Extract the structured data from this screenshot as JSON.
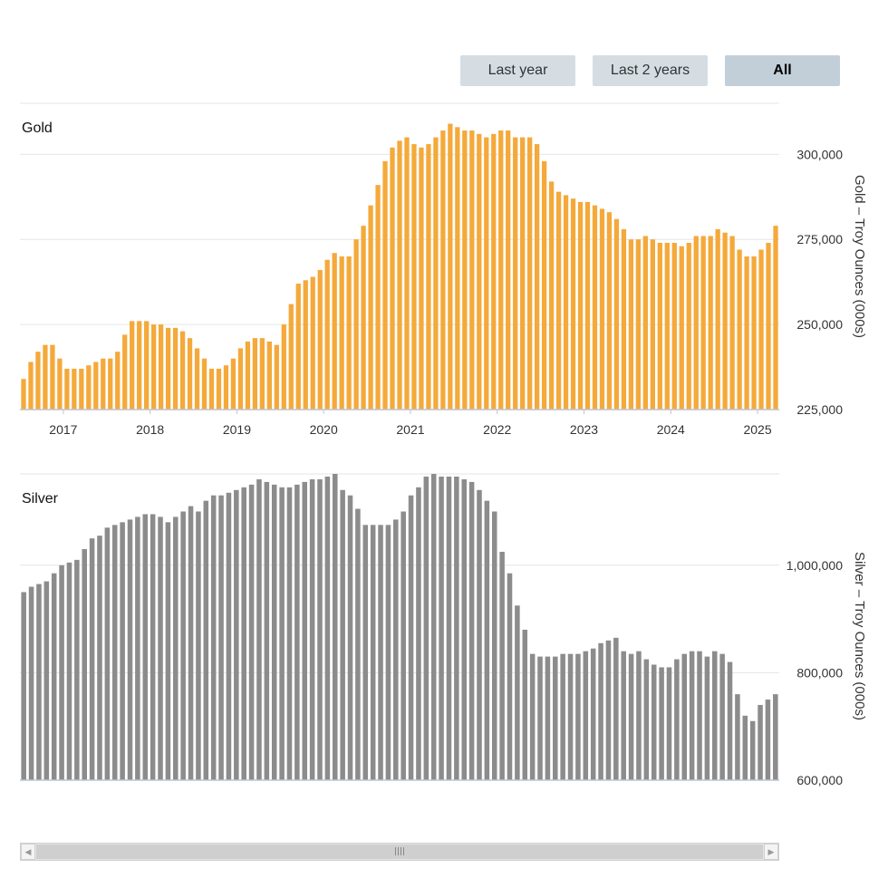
{
  "range_buttons": [
    "Last year",
    "Last 2 years",
    "All"
  ],
  "active_range": "All",
  "colors": {
    "gold": "#f4a93a",
    "silver": "#8c8c8c",
    "grid": "#e2e6ea",
    "axis": "#bcc4d6"
  },
  "chart_data": [
    {
      "type": "bar",
      "title": "Gold",
      "ylabel": "Gold – Troy Ounces (000s)",
      "ylim": [
        225000,
        315000
      ],
      "yticks": [
        225000,
        250000,
        275000,
        300000
      ],
      "ytick_labels": [
        "225,000",
        "250,000",
        "275,000",
        "300,000"
      ],
      "x_start": "2016-07",
      "xtick_labels": [
        "2017",
        "2018",
        "2019",
        "2020",
        "2021",
        "2022",
        "2023",
        "2024",
        "2025"
      ],
      "values": [
        234000,
        239000,
        242000,
        244000,
        244000,
        240000,
        237000,
        237000,
        237000,
        238000,
        239000,
        240000,
        240000,
        242000,
        247000,
        251000,
        251000,
        251000,
        250000,
        250000,
        249000,
        249000,
        248000,
        246000,
        243000,
        240000,
        237000,
        237000,
        238000,
        240000,
        243000,
        245000,
        246000,
        246000,
        245000,
        244000,
        250000,
        256000,
        262000,
        263000,
        264000,
        266000,
        269000,
        271000,
        270000,
        270000,
        275000,
        279000,
        285000,
        291000,
        298000,
        302000,
        304000,
        305000,
        303000,
        302000,
        303000,
        305000,
        307000,
        309000,
        308000,
        307000,
        307000,
        306000,
        305000,
        306000,
        307000,
        307000,
        305000,
        305000,
        305000,
        303000,
        298000,
        292000,
        289000,
        288000,
        287000,
        286000,
        286000,
        285000,
        284000,
        283000,
        281000,
        278000,
        275000,
        275000,
        276000,
        275000,
        274000,
        274000,
        274000,
        273000,
        274000,
        276000,
        276000,
        276000,
        278000,
        277000,
        276000,
        272000,
        270000,
        270000,
        272000,
        274000,
        279000
      ]
    },
    {
      "type": "bar",
      "title": "Silver",
      "ylabel": "Silver – Troy Ounces (000s)",
      "ylim": [
        600000,
        1170000
      ],
      "yticks": [
        600000,
        800000,
        1000000
      ],
      "ytick_labels": [
        "600,000",
        "800,000",
        "1,000,000"
      ],
      "x_start": "2016-07",
      "values": [
        950000,
        960000,
        965000,
        970000,
        985000,
        1000000,
        1005000,
        1010000,
        1030000,
        1050000,
        1055000,
        1070000,
        1075000,
        1080000,
        1085000,
        1090000,
        1095000,
        1095000,
        1090000,
        1080000,
        1090000,
        1100000,
        1110000,
        1100000,
        1120000,
        1130000,
        1130000,
        1135000,
        1140000,
        1145000,
        1150000,
        1160000,
        1155000,
        1150000,
        1145000,
        1145000,
        1150000,
        1155000,
        1160000,
        1160000,
        1165000,
        1170000,
        1140000,
        1130000,
        1105000,
        1075000,
        1075000,
        1075000,
        1075000,
        1085000,
        1100000,
        1130000,
        1145000,
        1165000,
        1170000,
        1165000,
        1165000,
        1165000,
        1160000,
        1155000,
        1140000,
        1120000,
        1100000,
        1025000,
        985000,
        925000,
        880000,
        835000,
        830000,
        830000,
        830000,
        835000,
        835000,
        835000,
        840000,
        845000,
        855000,
        860000,
        865000,
        840000,
        835000,
        840000,
        825000,
        815000,
        810000,
        810000,
        825000,
        835000,
        840000,
        840000,
        830000,
        840000,
        835000,
        820000,
        760000,
        720000,
        710000,
        740000,
        750000,
        760000
      ]
    }
  ]
}
